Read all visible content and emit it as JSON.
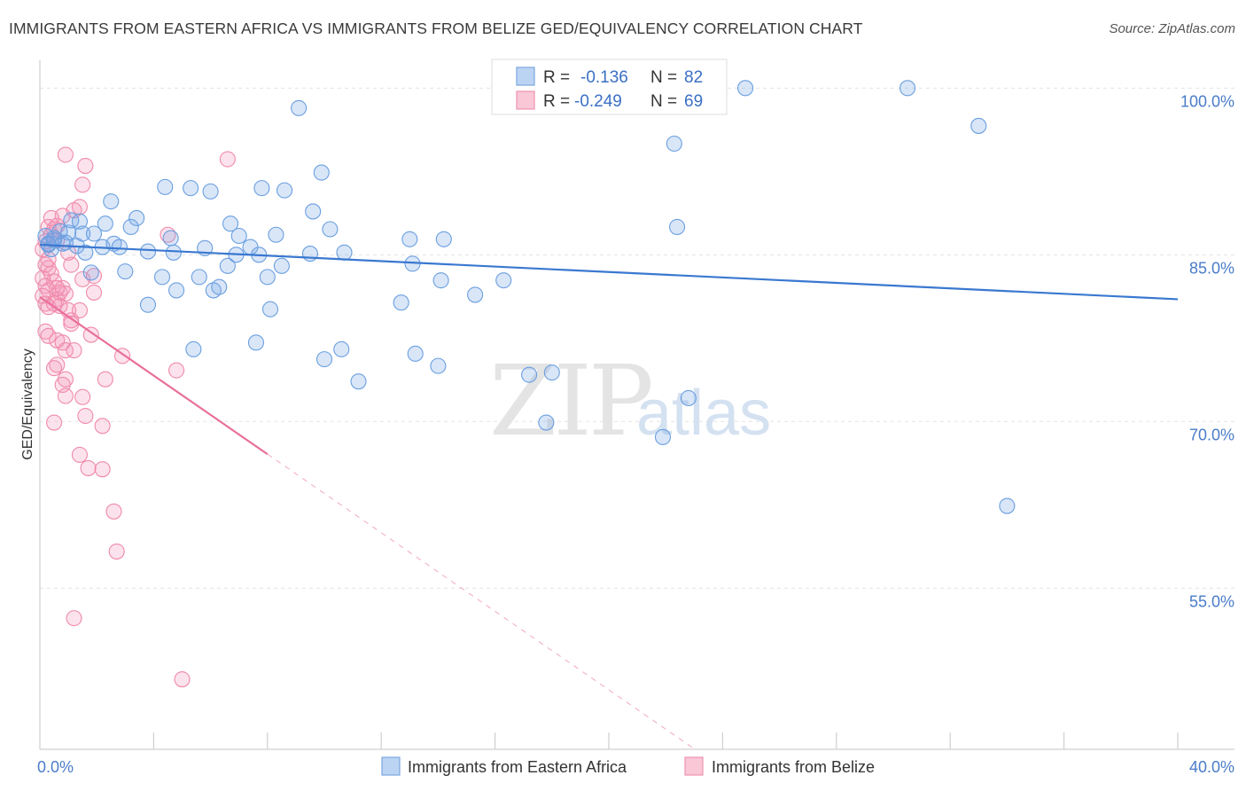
{
  "header": {
    "title": "IMMIGRANTS FROM EASTERN AFRICA VS IMMIGRANTS FROM BELIZE GED/EQUIVALENCY CORRELATION CHART",
    "source": "Source: ZipAtlas.com"
  },
  "colors": {
    "blue": "#6a9fe0",
    "blue_line": "#3a78d0",
    "pink": "#f08aaa",
    "pink_line": "#e8709a",
    "tick_text": "#4a7cc9"
  },
  "watermark": {
    "zip": "ZIP",
    "atlas": "atlas"
  },
  "legend": {
    "r_label": "R =",
    "n_label": "N =",
    "rows": [
      {
        "r": "-0.136",
        "n": "82"
      },
      {
        "r": "-0.249",
        "n": "69"
      }
    ]
  },
  "chart_data": {
    "type": "scatter",
    "title": "IMMIGRANTS FROM EASTERN AFRICA VS IMMIGRANTS FROM BELIZE GED/EQUIVALENCY CORRELATION CHART",
    "xlabel": "",
    "ylabel": "GED/Equivalency",
    "xlim": [
      0,
      40
    ],
    "ylim": [
      40.5,
      102.5
    ],
    "x_tick_labels": [
      "0.0%",
      "40.0%"
    ],
    "y_ticks": [
      55,
      70,
      85,
      100
    ],
    "y_tick_labels": [
      "55.0%",
      "70.0%",
      "85.0%",
      "100.0%"
    ],
    "grid": true,
    "legend_position": "top-center",
    "series": [
      {
        "name": "Immigrants from Eastern Africa",
        "color": "#6a9fe0",
        "r": -0.136,
        "n": 82,
        "trend": {
          "x": [
            0,
            40
          ],
          "y": [
            85.9,
            81.0
          ],
          "solid_until": 40
        },
        "points": [
          [
            0.2,
            86.7
          ],
          [
            0.3,
            86.0
          ],
          [
            0.4,
            85.5
          ],
          [
            0.5,
            86.3
          ],
          [
            0.7,
            87.1
          ],
          [
            0.8,
            86.0
          ],
          [
            1.0,
            87.0
          ],
          [
            1.1,
            88.1
          ],
          [
            1.3,
            85.8
          ],
          [
            1.4,
            88.0
          ],
          [
            1.5,
            86.9
          ],
          [
            1.6,
            85.2
          ],
          [
            1.8,
            83.4
          ],
          [
            2.2,
            85.7
          ],
          [
            2.3,
            87.8
          ],
          [
            2.5,
            89.8
          ],
          [
            2.6,
            86.0
          ],
          [
            2.8,
            85.7
          ],
          [
            3.8,
            85.3
          ],
          [
            3.8,
            80.5
          ],
          [
            3.0,
            83.5
          ],
          [
            3.2,
            87.5
          ],
          [
            3.4,
            88.3
          ],
          [
            4.3,
            83.0
          ],
          [
            4.4,
            91.1
          ],
          [
            4.6,
            86.5
          ],
          [
            4.7,
            85.2
          ],
          [
            4.8,
            81.8
          ],
          [
            5.3,
            91.0
          ],
          [
            5.4,
            76.5
          ],
          [
            5.6,
            83.0
          ],
          [
            5.8,
            85.6
          ],
          [
            6.0,
            90.7
          ],
          [
            6.1,
            81.8
          ],
          [
            6.3,
            82.1
          ],
          [
            6.6,
            84.0
          ],
          [
            6.7,
            87.8
          ],
          [
            6.9,
            85.0
          ],
          [
            7.0,
            86.7
          ],
          [
            7.4,
            85.7
          ],
          [
            7.6,
            77.1
          ],
          [
            7.7,
            85.0
          ],
          [
            7.8,
            91.0
          ],
          [
            8.0,
            83.0
          ],
          [
            8.1,
            80.1
          ],
          [
            8.3,
            86.8
          ],
          [
            8.5,
            84.0
          ],
          [
            8.6,
            90.8
          ],
          [
            9.1,
            98.2
          ],
          [
            9.5,
            85.1
          ],
          [
            9.6,
            88.9
          ],
          [
            9.9,
            92.4
          ],
          [
            10.0,
            75.6
          ],
          [
            10.2,
            87.3
          ],
          [
            10.6,
            76.5
          ],
          [
            10.7,
            85.2
          ],
          [
            11.2,
            73.6
          ],
          [
            12.7,
            80.7
          ],
          [
            13.0,
            86.4
          ],
          [
            13.1,
            84.2
          ],
          [
            13.2,
            76.1
          ],
          [
            14.0,
            75.0
          ],
          [
            14.1,
            82.7
          ],
          [
            14.2,
            86.4
          ],
          [
            15.3,
            81.4
          ],
          [
            16.3,
            82.7
          ],
          [
            17.2,
            74.2
          ],
          [
            17.3,
            99.9
          ],
          [
            17.8,
            69.9
          ],
          [
            18.0,
            74.4
          ],
          [
            21.9,
            68.6
          ],
          [
            22.3,
            95.0
          ],
          [
            22.4,
            87.5
          ],
          [
            22.8,
            72.1
          ],
          [
            24.8,
            100.0
          ],
          [
            30.5,
            100.0
          ],
          [
            33.0,
            96.6
          ],
          [
            34.0,
            62.4
          ],
          [
            0.3,
            85.9
          ],
          [
            0.5,
            86.5
          ],
          [
            0.9,
            86.1
          ],
          [
            1.9,
            86.9
          ]
        ]
      },
      {
        "name": "Immigrants from Belize",
        "color": "#f08aaa",
        "r": -0.249,
        "n": 69,
        "trend": {
          "x": [
            0,
            40
          ],
          "y": [
            81.2,
            10.5
          ],
          "solid_until": 8.0
        },
        "points": [
          [
            0.1,
            85.5
          ],
          [
            0.2,
            86.2
          ],
          [
            0.3,
            87.5
          ],
          [
            0.4,
            86.8
          ],
          [
            0.5,
            87.3
          ],
          [
            0.6,
            86.3
          ],
          [
            0.2,
            84.1
          ],
          [
            0.3,
            83.8
          ],
          [
            0.4,
            83.3
          ],
          [
            0.5,
            82.6
          ],
          [
            0.1,
            82.9
          ],
          [
            0.2,
            82.2
          ],
          [
            0.3,
            81.8
          ],
          [
            0.1,
            81.3
          ],
          [
            0.2,
            80.6
          ],
          [
            0.3,
            80.3
          ],
          [
            0.6,
            81.0
          ],
          [
            0.7,
            81.6
          ],
          [
            0.8,
            82.0
          ],
          [
            0.9,
            81.5
          ],
          [
            1.0,
            80.0
          ],
          [
            1.1,
            78.8
          ],
          [
            0.2,
            78.1
          ],
          [
            0.3,
            77.7
          ],
          [
            0.6,
            77.3
          ],
          [
            0.8,
            77.1
          ],
          [
            0.9,
            76.4
          ],
          [
            1.2,
            76.4
          ],
          [
            0.5,
            74.8
          ],
          [
            0.6,
            75.1
          ],
          [
            0.9,
            73.8
          ],
          [
            0.8,
            73.3
          ],
          [
            0.9,
            72.3
          ],
          [
            1.5,
            72.2
          ],
          [
            1.6,
            70.5
          ],
          [
            0.5,
            69.9
          ],
          [
            2.2,
            69.6
          ],
          [
            1.4,
            67.0
          ],
          [
            1.7,
            65.8
          ],
          [
            2.2,
            65.7
          ],
          [
            2.6,
            61.9
          ],
          [
            2.7,
            58.3
          ],
          [
            1.2,
            52.3
          ],
          [
            5.0,
            46.8
          ],
          [
            0.9,
            94.0
          ],
          [
            1.6,
            93.0
          ],
          [
            1.5,
            91.3
          ],
          [
            1.4,
            89.3
          ],
          [
            1.2,
            89.0
          ],
          [
            0.8,
            88.5
          ],
          [
            0.6,
            87.6
          ],
          [
            0.4,
            88.3
          ],
          [
            1.0,
            85.2
          ],
          [
            1.1,
            84.1
          ],
          [
            1.5,
            82.8
          ],
          [
            1.9,
            83.1
          ],
          [
            1.9,
            81.6
          ],
          [
            1.4,
            80.0
          ],
          [
            0.7,
            80.4
          ],
          [
            0.5,
            80.6
          ],
          [
            1.8,
            77.8
          ],
          [
            2.3,
            73.8
          ],
          [
            2.9,
            75.9
          ],
          [
            4.8,
            74.6
          ],
          [
            4.5,
            86.8
          ],
          [
            6.6,
            93.6
          ],
          [
            0.3,
            84.6
          ],
          [
            0.6,
            82.0
          ],
          [
            1.1,
            79.1
          ]
        ]
      }
    ]
  }
}
